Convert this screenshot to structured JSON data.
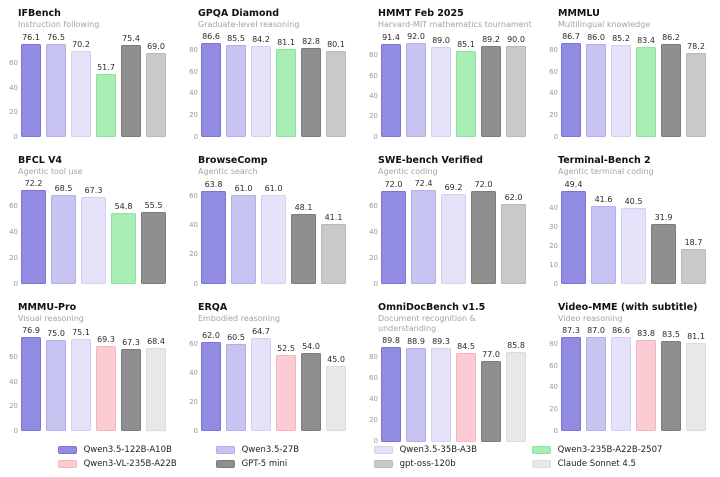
{
  "palette": {
    "Qwen3.5-122B-A10B": {
      "fill": "#918ce2",
      "edge": "#7b76d6"
    },
    "Qwen3.5-27B": {
      "fill": "#c7c4f1",
      "edge": "#b2aeea"
    },
    "Qwen3.5-35B-A3B": {
      "fill": "#e4e2f9",
      "edge": "#d3d0f2"
    },
    "Qwen3-235B-A22B-2507": {
      "fill": "#a8edb3",
      "edge": "#8ce49e"
    },
    "Qwen3-VL-235B-A22B": {
      "fill": "#fbccd3",
      "edge": "#f6b6bf"
    },
    "GPT-5 mini": {
      "fill": "#8f8f8f",
      "edge": "#7c7c7c"
    },
    "gpt-oss-120b": {
      "fill": "#c9c9c9",
      "edge": "#b9b9b9"
    },
    "Claude Sonnet 4.5": {
      "fill": "#e8e8e8",
      "edge": "#dcdcdc"
    }
  },
  "legend": {
    "items": [
      "Qwen3.5-122B-A10B",
      "Qwen3.5-27B",
      "Qwen3.5-35B-A3B",
      "Qwen3-235B-A22B-2507",
      "Qwen3-VL-235B-A22B",
      "GPT-5 mini",
      "gpt-oss-120b",
      "Claude Sonnet 4.5"
    ]
  },
  "chart_data": [
    {
      "type": "bar",
      "title": "IFBench",
      "subtitle": "Instruction following",
      "yticks": [
        0,
        20,
        40,
        60
      ],
      "ylim": [
        0,
        85
      ],
      "series": [
        {
          "name": "Qwen3.5-122B-A10B",
          "value": 76.1
        },
        {
          "name": "Qwen3.5-27B",
          "value": 76.5
        },
        {
          "name": "Qwen3.5-35B-A3B",
          "value": 70.2
        },
        {
          "name": "Qwen3-235B-A22B-2507",
          "value": 51.7
        },
        {
          "name": "GPT-5 mini",
          "value": 75.4
        },
        {
          "name": "gpt-oss-120b",
          "value": 69.0
        }
      ]
    },
    {
      "type": "bar",
      "title": "GPQA Diamond",
      "subtitle": "Graduate-level reasoning",
      "yticks": [
        0,
        20,
        40,
        60,
        80
      ],
      "ylim": [
        0,
        96
      ],
      "series": [
        {
          "name": "Qwen3.5-122B-A10B",
          "value": 86.6
        },
        {
          "name": "Qwen3.5-27B",
          "value": 85.5
        },
        {
          "name": "Qwen3.5-35B-A3B",
          "value": 84.2
        },
        {
          "name": "Qwen3-235B-A22B-2507",
          "value": 81.1
        },
        {
          "name": "GPT-5 mini",
          "value": 82.8
        },
        {
          "name": "gpt-oss-120b",
          "value": 80.1
        }
      ]
    },
    {
      "type": "bar",
      "title": "HMMT Feb 2025",
      "subtitle": "Harvard-MIT mathematics tournament",
      "yticks": [
        0,
        20,
        40,
        60,
        80
      ],
      "ylim": [
        0,
        102
      ],
      "series": [
        {
          "name": "Qwen3.5-122B-A10B",
          "value": 91.4
        },
        {
          "name": "Qwen3.5-27B",
          "value": 92.0
        },
        {
          "name": "Qwen3.5-35B-A3B",
          "value": 89.0
        },
        {
          "name": "Qwen3-235B-A22B-2507",
          "value": 85.1
        },
        {
          "name": "GPT-5 mini",
          "value": 89.2
        },
        {
          "name": "gpt-oss-120b",
          "value": 90.0
        }
      ]
    },
    {
      "type": "bar",
      "title": "MMMLU",
      "subtitle": "Multilingual knowledge",
      "yticks": [
        0,
        20,
        40,
        60,
        80
      ],
      "ylim": [
        0,
        96
      ],
      "series": [
        {
          "name": "Qwen3.5-122B-A10B",
          "value": 86.7
        },
        {
          "name": "Qwen3.5-27B",
          "value": 86.0
        },
        {
          "name": "Qwen3.5-35B-A3B",
          "value": 85.2
        },
        {
          "name": "Qwen3-235B-A22B-2507",
          "value": 83.4
        },
        {
          "name": "GPT-5 mini",
          "value": 86.2
        },
        {
          "name": "gpt-oss-120b",
          "value": 78.2
        }
      ]
    },
    {
      "type": "bar",
      "title": "BFCL V4",
      "subtitle": "Agentic tool use",
      "yticks": [
        0,
        20,
        40,
        60
      ],
      "ylim": [
        0,
        80
      ],
      "series": [
        {
          "name": "Qwen3.5-122B-A10B",
          "value": 72.2
        },
        {
          "name": "Qwen3.5-27B",
          "value": 68.5
        },
        {
          "name": "Qwen3.5-35B-A3B",
          "value": 67.3
        },
        {
          "name": "Qwen3-235B-A22B-2507",
          "value": 54.8
        },
        {
          "name": "GPT-5 mini",
          "value": 55.5
        }
      ]
    },
    {
      "type": "bar",
      "title": "BrowseComp",
      "subtitle": "Agentic search",
      "yticks": [
        0,
        20,
        40,
        60
      ],
      "ylim": [
        0,
        71
      ],
      "series": [
        {
          "name": "Qwen3.5-122B-A10B",
          "value": 63.8
        },
        {
          "name": "Qwen3.5-27B",
          "value": 61.0
        },
        {
          "name": "Qwen3.5-35B-A3B",
          "value": 61.0
        },
        {
          "name": "GPT-5 mini",
          "value": 48.1
        },
        {
          "name": "gpt-oss-120b",
          "value": 41.1
        }
      ]
    },
    {
      "type": "bar",
      "title": "SWE-bench Verified",
      "subtitle": "Agentic coding",
      "yticks": [
        0,
        20,
        40,
        60
      ],
      "ylim": [
        0,
        80
      ],
      "series": [
        {
          "name": "Qwen3.5-122B-A10B",
          "value": 72.0
        },
        {
          "name": "Qwen3.5-27B",
          "value": 72.4
        },
        {
          "name": "Qwen3.5-35B-A3B",
          "value": 69.2
        },
        {
          "name": "GPT-5 mini",
          "value": 72.0
        },
        {
          "name": "gpt-oss-120b",
          "value": 62.0
        }
      ]
    },
    {
      "type": "bar",
      "title": "Terminal-Bench 2",
      "subtitle": "Agentic terminal coding",
      "yticks": [
        0,
        10,
        20,
        30,
        40
      ],
      "ylim": [
        0,
        55
      ],
      "series": [
        {
          "name": "Qwen3.5-122B-A10B",
          "value": 49.4
        },
        {
          "name": "Qwen3.5-27B",
          "value": 41.6
        },
        {
          "name": "Qwen3.5-35B-A3B",
          "value": 40.5
        },
        {
          "name": "GPT-5 mini",
          "value": 31.9
        },
        {
          "name": "gpt-oss-120b",
          "value": 18.7
        }
      ]
    },
    {
      "type": "bar",
      "title": "MMMU-Pro",
      "subtitle": "Visual reasoning",
      "yticks": [
        0,
        20,
        40,
        60
      ],
      "ylim": [
        0,
        85
      ],
      "series": [
        {
          "name": "Qwen3.5-122B-A10B",
          "value": 76.9
        },
        {
          "name": "Qwen3.5-27B",
          "value": 75.0
        },
        {
          "name": "Qwen3.5-35B-A3B",
          "value": 75.1
        },
        {
          "name": "Qwen3-VL-235B-A22B",
          "value": 69.3
        },
        {
          "name": "GPT-5 mini",
          "value": 67.3
        },
        {
          "name": "Claude Sonnet 4.5",
          "value": 68.4
        }
      ]
    },
    {
      "type": "bar",
      "title": "ERQA",
      "subtitle": "Embodied reasoning",
      "yticks": [
        0,
        20,
        40,
        60
      ],
      "ylim": [
        0,
        72
      ],
      "series": [
        {
          "name": "Qwen3.5-122B-A10B",
          "value": 62.0
        },
        {
          "name": "Qwen3.5-27B",
          "value": 60.5
        },
        {
          "name": "Qwen3.5-35B-A3B",
          "value": 64.7
        },
        {
          "name": "Qwen3-VL-235B-A22B",
          "value": 52.5
        },
        {
          "name": "GPT-5 mini",
          "value": 54.0
        },
        {
          "name": "Claude Sonnet 4.5",
          "value": 45.0
        }
      ]
    },
    {
      "type": "bar",
      "title": "OmniDocBench v1.5",
      "subtitle": "Document recognition & understanding",
      "yticks": [
        0,
        20,
        40,
        60,
        80
      ],
      "ylim": [
        0,
        99
      ],
      "series": [
        {
          "name": "Qwen3.5-122B-A10B",
          "value": 89.8
        },
        {
          "name": "Qwen3.5-27B",
          "value": 88.9
        },
        {
          "name": "Qwen3.5-35B-A3B",
          "value": 89.3
        },
        {
          "name": "Qwen3-VL-235B-A22B",
          "value": 84.5
        },
        {
          "name": "GPT-5 mini",
          "value": 77.0
        },
        {
          "name": "Claude Sonnet 4.5",
          "value": 85.8
        }
      ]
    },
    {
      "type": "bar",
      "title": "Video-MME (with subtitle)",
      "subtitle": "Video reasoning",
      "yticks": [
        0,
        20,
        40,
        60,
        80
      ],
      "ylim": [
        0,
        96
      ],
      "series": [
        {
          "name": "Qwen3.5-122B-A10B",
          "value": 87.3
        },
        {
          "name": "Qwen3.5-27B",
          "value": 87.0
        },
        {
          "name": "Qwen3.5-35B-A3B",
          "value": 86.6
        },
        {
          "name": "Qwen3-VL-235B-A22B",
          "value": 83.8
        },
        {
          "name": "GPT-5 mini",
          "value": 83.5
        },
        {
          "name": "Claude Sonnet 4.5",
          "value": 81.1
        }
      ]
    }
  ]
}
